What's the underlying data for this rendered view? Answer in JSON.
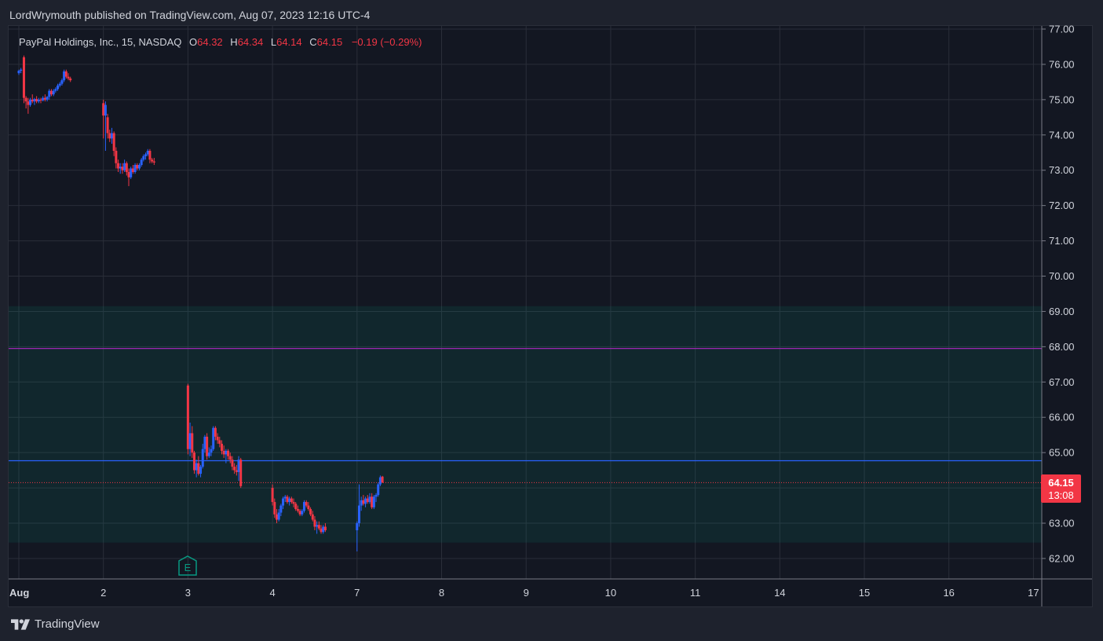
{
  "header": {
    "publisher_line": "LordWrymouth published on TradingView.com, Aug 07, 2023 12:16 UTC-4"
  },
  "legend": {
    "symbol": "PayPal Holdings, Inc., 15, NASDAQ",
    "open_label": "O",
    "open": "64.32",
    "high_label": "H",
    "high": "64.34",
    "low_label": "L",
    "low": "64.14",
    "close_label": "C",
    "close": "64.15",
    "change": "−0.19 (−0.29%)"
  },
  "price_tag": {
    "price": "64.15",
    "countdown": "13:08",
    "color": "#f23645"
  },
  "earnings_marker": {
    "letter": "E",
    "color": "#089981"
  },
  "footer": {
    "brand": "TradingView"
  },
  "colors": {
    "up": "#2962ff",
    "down": "#f23645",
    "zone": "#089981",
    "purple_line": "#9c27b0",
    "blue_line": "#2962ff"
  },
  "chart_data": {
    "type": "candlestick",
    "symbol": "PYPL",
    "interval": "15",
    "ylim": [
      61.4,
      77.2
    ],
    "y_ticks": [
      "77.00",
      "76.00",
      "75.00",
      "74.00",
      "73.00",
      "72.00",
      "71.00",
      "70.00",
      "69.00",
      "68.00",
      "67.00",
      "66.00",
      "65.00",
      "64.00",
      "63.00",
      "62.00"
    ],
    "x_ticks": [
      {
        "label": "Aug",
        "x": 0
      },
      {
        "label": "2",
        "x": 1
      },
      {
        "label": "3",
        "x": 2
      },
      {
        "label": "4",
        "x": 3
      },
      {
        "label": "7",
        "x": 4
      },
      {
        "label": "8",
        "x": 5
      },
      {
        "label": "9",
        "x": 6
      },
      {
        "label": "10",
        "x": 7
      },
      {
        "label": "11",
        "x": 8
      },
      {
        "label": "14",
        "x": 9
      },
      {
        "label": "15",
        "x": 10
      },
      {
        "label": "16",
        "x": 11
      },
      {
        "label": "17",
        "x": 12
      }
    ],
    "zone": {
      "from": 62.45,
      "to": 69.15
    },
    "horizontal_lines": [
      {
        "price": 67.95,
        "color": "#9c27b0"
      },
      {
        "price": 64.77,
        "color": "#2962ff"
      }
    ],
    "last_price": 64.15,
    "candles": [
      [
        0.0,
        75.75,
        75.85,
        75.7,
        75.82
      ],
      [
        0.025,
        75.82,
        75.9,
        75.75,
        75.85
      ],
      [
        0.06,
        76.2,
        76.25,
        74.9,
        75.05
      ],
      [
        0.085,
        75.05,
        75.1,
        74.75,
        74.95
      ],
      [
        0.11,
        74.95,
        75.05,
        74.6,
        74.85
      ],
      [
        0.135,
        74.85,
        75.05,
        74.8,
        75.0
      ],
      [
        0.16,
        75.0,
        75.15,
        74.9,
        74.95
      ],
      [
        0.185,
        74.95,
        75.05,
        74.85,
        75.02
      ],
      [
        0.21,
        75.02,
        75.1,
        74.9,
        74.95
      ],
      [
        0.235,
        74.95,
        75.05,
        74.9,
        75.0
      ],
      [
        0.26,
        75.0,
        75.05,
        74.9,
        74.98
      ],
      [
        0.285,
        74.98,
        75.1,
        74.95,
        75.05
      ],
      [
        0.31,
        75.05,
        75.15,
        74.95,
        75.0
      ],
      [
        0.335,
        75.0,
        75.1,
        74.95,
        75.08
      ],
      [
        0.36,
        75.08,
        75.3,
        75.0,
        75.25
      ],
      [
        0.385,
        75.25,
        75.3,
        75.1,
        75.15
      ],
      [
        0.41,
        75.15,
        75.3,
        75.1,
        75.25
      ],
      [
        0.435,
        75.25,
        75.35,
        75.2,
        75.3
      ],
      [
        0.46,
        75.3,
        75.45,
        75.25,
        75.4
      ],
      [
        0.485,
        75.4,
        75.5,
        75.35,
        75.45
      ],
      [
        0.51,
        75.45,
        75.6,
        75.4,
        75.55
      ],
      [
        0.535,
        75.55,
        75.85,
        75.5,
        75.8
      ],
      [
        0.56,
        75.8,
        75.85,
        75.6,
        75.65
      ],
      [
        0.585,
        75.65,
        75.75,
        75.55,
        75.6
      ],
      [
        0.61,
        75.6,
        75.65,
        75.5,
        75.55
      ],
      [
        1.0,
        74.9,
        75.0,
        73.9,
        74.55
      ],
      [
        1.025,
        74.55,
        74.95,
        73.55,
        74.85
      ],
      [
        1.05,
        74.5,
        74.6,
        73.9,
        74.05
      ],
      [
        1.075,
        74.05,
        74.15,
        73.8,
        73.9
      ],
      [
        1.1,
        73.9,
        74.2,
        73.75,
        74.05
      ],
      [
        1.125,
        74.05,
        74.1,
        73.4,
        73.55
      ],
      [
        1.15,
        73.55,
        73.65,
        73.05,
        73.2
      ],
      [
        1.175,
        73.2,
        73.3,
        72.95,
        73.05
      ],
      [
        1.2,
        73.05,
        73.2,
        72.9,
        73.1
      ],
      [
        1.225,
        73.1,
        73.2,
        72.9,
        73.0
      ],
      [
        1.25,
        73.0,
        73.3,
        72.95,
        73.2
      ],
      [
        1.275,
        73.2,
        73.25,
        72.85,
        72.95
      ],
      [
        1.3,
        72.95,
        73.05,
        72.55,
        72.8
      ],
      [
        1.325,
        72.8,
        73.1,
        72.75,
        73.05
      ],
      [
        1.35,
        73.05,
        73.15,
        72.9,
        72.95
      ],
      [
        1.375,
        72.95,
        73.2,
        72.9,
        73.15
      ],
      [
        1.4,
        73.15,
        73.2,
        73.0,
        73.05
      ],
      [
        1.425,
        73.05,
        73.2,
        73.0,
        73.15
      ],
      [
        1.45,
        73.15,
        73.35,
        73.1,
        73.3
      ],
      [
        1.475,
        73.3,
        73.45,
        73.25,
        73.4
      ],
      [
        1.5,
        73.4,
        73.5,
        73.3,
        73.45
      ],
      [
        1.525,
        73.45,
        73.6,
        73.4,
        73.55
      ],
      [
        1.55,
        73.55,
        73.6,
        73.2,
        73.3
      ],
      [
        1.575,
        73.3,
        73.35,
        73.2,
        73.25
      ],
      [
        1.6,
        73.25,
        73.35,
        73.15,
        73.22
      ],
      [
        2.0,
        66.9,
        66.95,
        64.95,
        65.1
      ],
      [
        2.025,
        65.1,
        65.85,
        64.9,
        65.55
      ],
      [
        2.05,
        65.55,
        65.75,
        64.85,
        65.0
      ],
      [
        2.075,
        65.0,
        65.05,
        64.4,
        64.5
      ],
      [
        2.1,
        64.5,
        64.8,
        64.3,
        64.7
      ],
      [
        2.125,
        64.7,
        64.9,
        64.35,
        64.4
      ],
      [
        2.15,
        64.4,
        64.65,
        64.3,
        64.6
      ],
      [
        2.175,
        64.6,
        65.25,
        64.55,
        65.1
      ],
      [
        2.2,
        65.1,
        65.5,
        65.0,
        65.45
      ],
      [
        2.225,
        65.45,
        65.55,
        64.8,
        64.9
      ],
      [
        2.25,
        64.9,
        65.15,
        64.85,
        65.0
      ],
      [
        2.275,
        65.0,
        65.2,
        64.9,
        65.1
      ],
      [
        2.3,
        65.1,
        65.75,
        65.05,
        65.7
      ],
      [
        2.325,
        65.7,
        65.75,
        65.35,
        65.45
      ],
      [
        2.35,
        65.45,
        65.55,
        65.25,
        65.35
      ],
      [
        2.375,
        65.35,
        65.45,
        65.15,
        65.25
      ],
      [
        2.4,
        65.25,
        65.35,
        64.95,
        65.05
      ],
      [
        2.425,
        65.05,
        65.2,
        64.85,
        64.95
      ],
      [
        2.45,
        64.95,
        65.1,
        64.7,
        65.05
      ],
      [
        2.475,
        65.05,
        65.1,
        64.8,
        64.9
      ],
      [
        2.5,
        64.9,
        65.0,
        64.7,
        64.8
      ],
      [
        2.525,
        64.8,
        64.9,
        64.5,
        64.6
      ],
      [
        2.55,
        64.6,
        64.7,
        64.4,
        64.5
      ],
      [
        2.575,
        64.5,
        64.65,
        64.35,
        64.45
      ],
      [
        2.6,
        64.45,
        64.9,
        64.2,
        64.8
      ],
      [
        2.625,
        64.8,
        64.85,
        64.0,
        64.05
      ],
      [
        3.0,
        64.0,
        64.1,
        63.5,
        63.6
      ],
      [
        3.025,
        63.6,
        63.7,
        63.15,
        63.25
      ],
      [
        3.05,
        63.25,
        63.4,
        63.0,
        63.1
      ],
      [
        3.075,
        63.1,
        63.4,
        63.05,
        63.3
      ],
      [
        3.1,
        63.3,
        63.55,
        63.2,
        63.5
      ],
      [
        3.125,
        63.5,
        63.75,
        63.4,
        63.7
      ],
      [
        3.15,
        63.7,
        63.8,
        63.6,
        63.75
      ],
      [
        3.175,
        63.75,
        63.8,
        63.55,
        63.6
      ],
      [
        3.2,
        63.6,
        63.75,
        63.5,
        63.7
      ],
      [
        3.225,
        63.7,
        63.75,
        63.55,
        63.6
      ],
      [
        3.25,
        63.6,
        63.7,
        63.45,
        63.55
      ],
      [
        3.275,
        63.55,
        63.6,
        63.35,
        63.4
      ],
      [
        3.3,
        63.4,
        63.5,
        63.3,
        63.35
      ],
      [
        3.325,
        63.35,
        63.4,
        63.2,
        63.25
      ],
      [
        3.35,
        63.25,
        63.4,
        63.2,
        63.35
      ],
      [
        3.375,
        63.35,
        63.65,
        63.3,
        63.6
      ],
      [
        3.4,
        63.6,
        63.65,
        63.45,
        63.5
      ],
      [
        3.425,
        63.5,
        63.6,
        63.35,
        63.4
      ],
      [
        3.45,
        63.4,
        63.45,
        63.2,
        63.25
      ],
      [
        3.475,
        63.25,
        63.35,
        63.05,
        63.1
      ],
      [
        3.5,
        63.1,
        63.2,
        62.8,
        62.9
      ],
      [
        3.525,
        62.9,
        63.05,
        62.7,
        62.95
      ],
      [
        3.55,
        62.95,
        63.05,
        62.8,
        62.85
      ],
      [
        3.575,
        62.85,
        62.95,
        62.7,
        62.75
      ],
      [
        3.6,
        62.75,
        62.95,
        62.7,
        62.9
      ],
      [
        3.625,
        62.9,
        63.0,
        62.75,
        62.8
      ],
      [
        4.0,
        62.8,
        63.05,
        62.2,
        63.0
      ],
      [
        4.025,
        63.0,
        64.1,
        62.9,
        63.5
      ],
      [
        4.05,
        63.5,
        63.75,
        63.35,
        63.65
      ],
      [
        4.075,
        63.65,
        63.8,
        63.5,
        63.55
      ],
      [
        4.1,
        63.55,
        63.75,
        63.45,
        63.7
      ],
      [
        4.125,
        63.7,
        63.8,
        63.55,
        63.6
      ],
      [
        4.15,
        63.6,
        63.85,
        63.55,
        63.75
      ],
      [
        4.175,
        63.75,
        63.85,
        63.4,
        63.45
      ],
      [
        4.2,
        63.45,
        63.8,
        63.4,
        63.75
      ],
      [
        4.225,
        63.75,
        63.85,
        63.6,
        63.8
      ],
      [
        4.25,
        63.8,
        64.15,
        63.75,
        64.1
      ],
      [
        4.275,
        64.1,
        64.35,
        64.05,
        64.3
      ],
      [
        4.3,
        64.32,
        64.34,
        64.14,
        64.15
      ]
    ]
  }
}
